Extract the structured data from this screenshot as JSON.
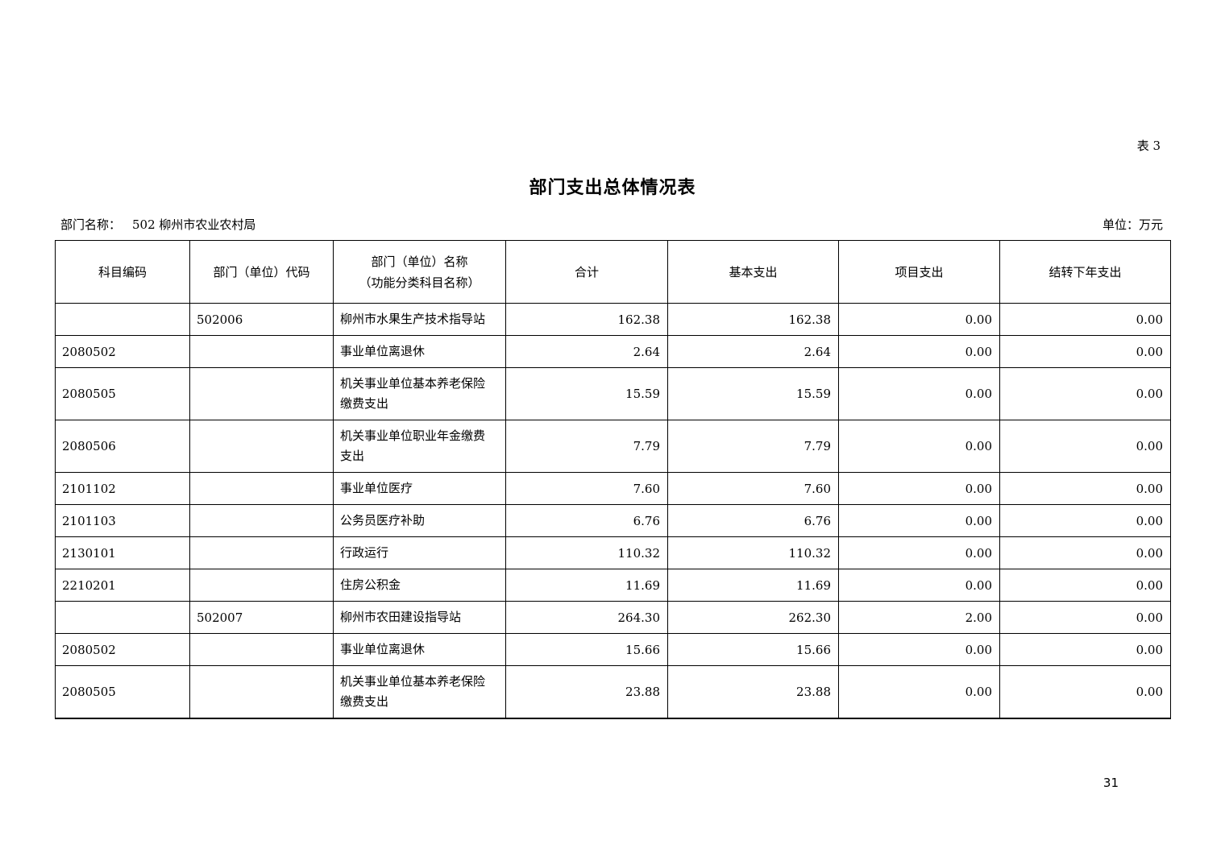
{
  "page": {
    "tag": "表 3",
    "title": "部门支出总体情况表",
    "dept_label": "部门名称：",
    "dept_value": "502 柳州市农业农村局",
    "unit_label": "单位：万元",
    "page_number": "31"
  },
  "table": {
    "headers": [
      "科目编码",
      "部门（单位）代码",
      "部门（单位）名称\n（功能分类科目名称）",
      "合计",
      "基本支出",
      "项目支出",
      "结转下年支出"
    ],
    "rows": [
      {
        "code": "",
        "unit_code": "502006",
        "name": "柳州市水果生产技术指导站",
        "total": "162.38",
        "basic": "162.38",
        "project": "0.00",
        "carryover": "0.00"
      },
      {
        "code": "2080502",
        "unit_code": "",
        "name": "事业单位离退休",
        "total": "2.64",
        "basic": "2.64",
        "project": "0.00",
        "carryover": "0.00"
      },
      {
        "code": "2080505",
        "unit_code": "",
        "name": "机关事业单位基本养老保险缴费支出",
        "total": "15.59",
        "basic": "15.59",
        "project": "0.00",
        "carryover": "0.00"
      },
      {
        "code": "2080506",
        "unit_code": "",
        "name": "机关事业单位职业年金缴费支出",
        "total": "7.79",
        "basic": "7.79",
        "project": "0.00",
        "carryover": "0.00"
      },
      {
        "code": "2101102",
        "unit_code": "",
        "name": "事业单位医疗",
        "total": "7.60",
        "basic": "7.60",
        "project": "0.00",
        "carryover": "0.00"
      },
      {
        "code": "2101103",
        "unit_code": "",
        "name": "公务员医疗补助",
        "total": "6.76",
        "basic": "6.76",
        "project": "0.00",
        "carryover": "0.00"
      },
      {
        "code": "2130101",
        "unit_code": "",
        "name": "行政运行",
        "total": "110.32",
        "basic": "110.32",
        "project": "0.00",
        "carryover": "0.00"
      },
      {
        "code": "2210201",
        "unit_code": "",
        "name": "住房公积金",
        "total": "11.69",
        "basic": "11.69",
        "project": "0.00",
        "carryover": "0.00"
      },
      {
        "code": "",
        "unit_code": "502007",
        "name": "柳州市农田建设指导站",
        "total": "264.30",
        "basic": "262.30",
        "project": "2.00",
        "carryover": "0.00"
      },
      {
        "code": "2080502",
        "unit_code": "",
        "name": "事业单位离退休",
        "total": "15.66",
        "basic": "15.66",
        "project": "0.00",
        "carryover": "0.00"
      },
      {
        "code": "2080505",
        "unit_code": "",
        "name": "机关事业单位基本养老保险缴费支出",
        "total": "23.88",
        "basic": "23.88",
        "project": "0.00",
        "carryover": "0.00"
      }
    ]
  }
}
